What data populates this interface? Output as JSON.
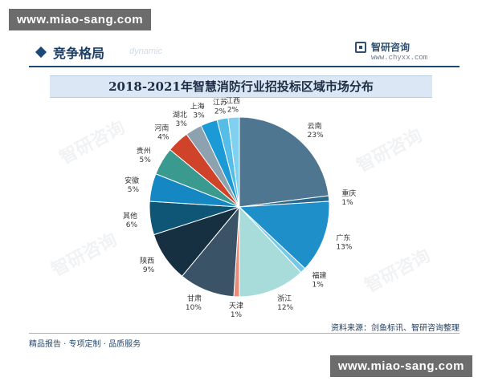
{
  "watermark": {
    "top": "www.miao-sang.com",
    "bottom": "www.miao-sang.com"
  },
  "header": {
    "title": "竞争格局",
    "subtitle": "dynamic",
    "brand_name": "智研咨询",
    "brand_url": "www.chyxx.com"
  },
  "background_watermark": "智研咨询",
  "chart_data": {
    "type": "pie",
    "title": "2018-2021年智慧消防行业招投标区域市场分布",
    "slices": [
      {
        "label": "云南",
        "value": 23,
        "display": "23%",
        "color": "#4f7690"
      },
      {
        "label": "重庆",
        "value": 1,
        "display": "1%",
        "color": "#2a688c"
      },
      {
        "label": "广东",
        "value": 13,
        "display": "13%",
        "color": "#1f8fca"
      },
      {
        "label": "福建",
        "value": 1,
        "display": "1%",
        "color": "#75c8ea"
      },
      {
        "label": "浙江",
        "value": 12,
        "display": "12%",
        "color": "#a8dcda"
      },
      {
        "label": "天津",
        "value": 1,
        "display": "1%",
        "color": "#e58d79"
      },
      {
        "label": "甘肃",
        "value": 10,
        "display": "10%",
        "color": "#3a5366"
      },
      {
        "label": "陕西",
        "value": 9,
        "display": "9%",
        "color": "#163042"
      },
      {
        "label": "其他",
        "value": 6,
        "display": "6%",
        "color": "#0f5575"
      },
      {
        "label": "安徽",
        "value": 5,
        "display": "5%",
        "color": "#1588c4"
      },
      {
        "label": "贵州",
        "value": 5,
        "display": "5%",
        "color": "#3b9a8f"
      },
      {
        "label": "河南",
        "value": 4,
        "display": "4%",
        "color": "#d0432b"
      },
      {
        "label": "湖北",
        "value": 3,
        "display": "3%",
        "color": "#8ea1ae"
      },
      {
        "label": "上海",
        "value": 3,
        "display": "3%",
        "color": "#1b9ad6"
      },
      {
        "label": "江苏",
        "value": 2,
        "display": "2%",
        "color": "#56bde6"
      },
      {
        "label": "江西",
        "value": 2,
        "display": "2%",
        "color": "#7fd1ef"
      }
    ]
  },
  "footer": {
    "source": "资料来源：剑鱼标讯、智研咨询整理",
    "left": "精品报告 · 专项定制 · 品质服务"
  }
}
